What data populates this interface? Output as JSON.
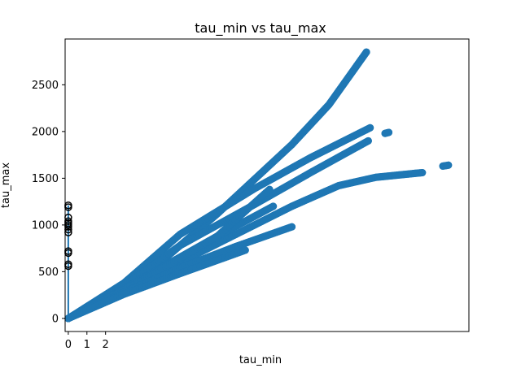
{
  "chart_data": {
    "type": "scatter",
    "title": "tau_min vs tau_max",
    "xlabel": "tau_min",
    "ylabel": "tau_max",
    "xlim": [
      -0.17,
      21.5
    ],
    "ylim": [
      -140,
      2990
    ],
    "x_ticks": [
      0,
      1,
      2
    ],
    "y_ticks": [
      0,
      500,
      1000,
      1500,
      2000,
      2500
    ],
    "grid": false,
    "legend": "none",
    "colors": {
      "series": "#1f77b4",
      "series_alt": "#000000"
    },
    "series": [
      {
        "marker": "circle",
        "connected": true,
        "color": "#1f77b4",
        "branches": [
          {
            "x": [
              0,
              4,
              8,
              12,
              14,
              16.0
            ],
            "y": [
              0,
              440,
              1120,
              1860,
              2290,
              2850
            ]
          },
          {
            "x": [
              0,
              3,
              6,
              10,
              13,
              16.2
            ],
            "y": [
              0,
              380,
              900,
              1390,
              1720,
              2040
            ]
          },
          {
            "x": [
              0,
              3,
              6,
              10,
              13,
              16.1
            ],
            "y": [
              0,
              350,
              780,
              1220,
              1560,
              1900
            ]
          },
          {
            "x": [
              0,
              3,
              6,
              9,
              12,
              14.5,
              16.5,
              18.5,
              19.0
            ],
            "y": [
              0,
              300,
              600,
              900,
              1200,
              1420,
              1510,
              1550,
              1560
            ]
          },
          {
            "x": [
              20.1,
              20.4
            ],
            "y": [
              1630,
              1640
            ]
          },
          {
            "x": [
              17.0,
              17.2
            ],
            "y": [
              1980,
              1990
            ]
          },
          {
            "x": [
              0,
              4,
              8,
              11.0
            ],
            "y": [
              0,
              430,
              880,
              1200
            ]
          },
          {
            "x": [
              0,
              4,
              8,
              10.8
            ],
            "y": [
              0,
              410,
              880,
              1380
            ]
          },
          {
            "x": [
              0,
              3,
              6,
              9,
              12.0
            ],
            "y": [
              0,
              280,
              540,
              770,
              980
            ]
          },
          {
            "x": [
              0,
              3,
              6,
              9.5
            ],
            "y": [
              0,
              260,
              480,
              730
            ]
          }
        ]
      },
      {
        "marker": "circle",
        "connected": false,
        "color": "#000000",
        "x": [
          0,
          0,
          0,
          0,
          0,
          0,
          0,
          0,
          0,
          0,
          0,
          0,
          0
        ],
        "y": [
          560,
          580,
          700,
          720,
          920,
          950,
          980,
          1000,
          1020,
          1040,
          1080,
          1190,
          1210
        ]
      }
    ]
  }
}
